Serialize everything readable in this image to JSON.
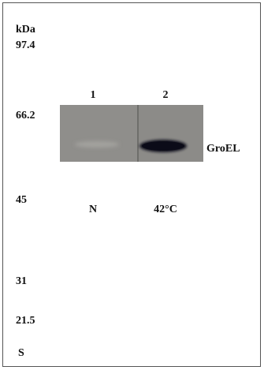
{
  "markers_unit": "kDa",
  "markers": [
    "97.4",
    "66.2",
    "45",
    "31",
    "21.5",
    "S"
  ],
  "lanes": [
    {
      "number": "1",
      "label": "N"
    },
    {
      "number": "2",
      "label": "42°C"
    }
  ],
  "band_label": "GroEL"
}
